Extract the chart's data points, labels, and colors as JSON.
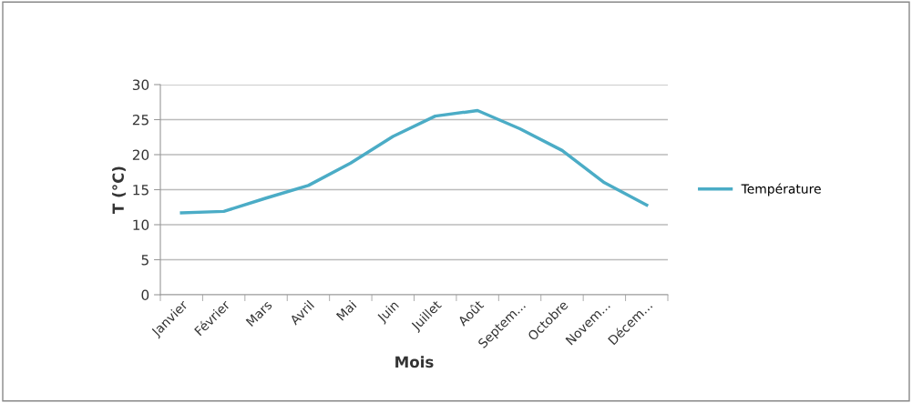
{
  "chart_data": {
    "type": "line",
    "xlabel": "Mois",
    "ylabel": "T (°C)",
    "categories": [
      "Janvier",
      "Février",
      "Mars",
      "Avril",
      "Mai",
      "Juin",
      "Juillet",
      "Août",
      "Septem...",
      "Octobre",
      "Novem...",
      "Décem..."
    ],
    "series": [
      {
        "name": "Température",
        "color": "#4bacc6",
        "values": [
          11.7,
          11.9,
          13.8,
          15.6,
          18.8,
          22.6,
          25.5,
          26.3,
          23.7,
          20.6,
          16.0,
          12.8
        ]
      }
    ],
    "ylim": [
      0,
      30
    ],
    "yticks": [
      0,
      5,
      10,
      15,
      20,
      25,
      30
    ],
    "grid": "y",
    "legend": "right",
    "marker": "none",
    "line_style": "solid"
  }
}
